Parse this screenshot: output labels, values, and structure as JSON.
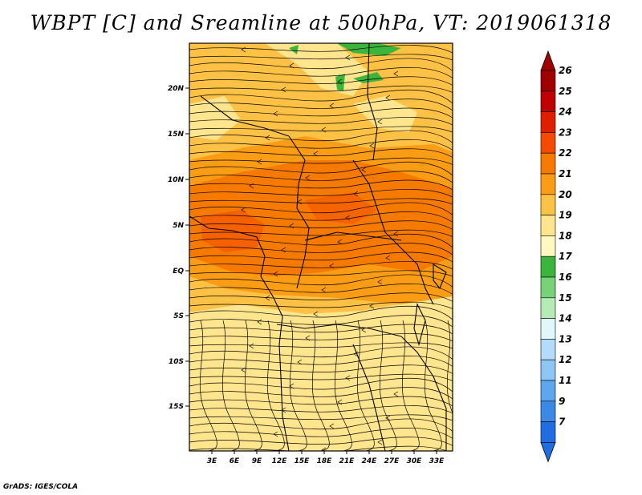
{
  "title": "WBPT [C] and Sreamline at 500hPa, VT: 2019061318",
  "footer": "GrADS: IGES/COLA",
  "map": {
    "lon_ticks": [
      "3E",
      "6E",
      "9E",
      "12E",
      "15E",
      "18E",
      "21E",
      "24E",
      "27E",
      "30E",
      "33E"
    ],
    "lat_ticks": [
      "20N",
      "15N",
      "10N",
      "5N",
      "EQ",
      "5S",
      "10S",
      "15S"
    ]
  },
  "colorbar": {
    "levels": [
      "26",
      "25",
      "24",
      "23",
      "22",
      "21",
      "20",
      "19",
      "18",
      "17",
      "16",
      "15",
      "14",
      "13",
      "12",
      "11",
      "9",
      "7"
    ],
    "colors": [
      "#a00000",
      "#c00000",
      "#e01f00",
      "#f44a00",
      "#f77a00",
      "#fb9d14",
      "#fdc245",
      "#ffe58e",
      "#fff8c0",
      "#3cb53c",
      "#78d278",
      "#b4ecb4",
      "#e1f8f8",
      "#b4dcfa",
      "#8ec6f5",
      "#5ea6ee",
      "#3c88e6",
      "#1e6ee1"
    ],
    "top_triangle_color": "#a00000",
    "bottom_triangle_color": "#1e6ee1"
  }
}
